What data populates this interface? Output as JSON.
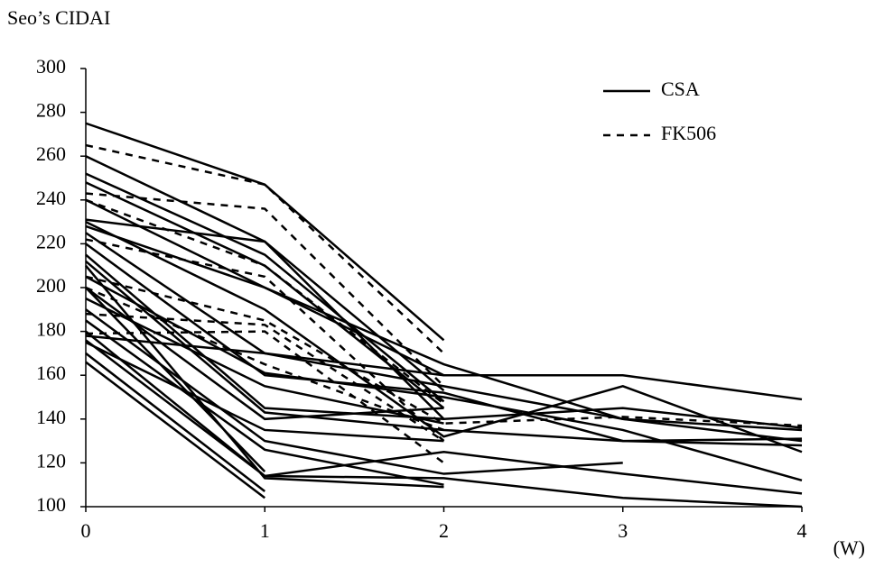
{
  "chart_data": {
    "type": "line",
    "y_label": "Seo’s CIDAI",
    "x_label": "(W)",
    "x": [
      0,
      1,
      2,
      3,
      4
    ],
    "xlim": [
      0,
      4
    ],
    "xticks": [
      0,
      1,
      2,
      3,
      4
    ],
    "ylim": [
      100,
      300
    ],
    "yticks": [
      100,
      120,
      140,
      160,
      180,
      200,
      220,
      240,
      260,
      280,
      300
    ],
    "grid": false,
    "legend_position": "upper-right",
    "color": "#000000",
    "legend": [
      {
        "name": "CSA",
        "dash": "solid"
      },
      {
        "name": "FK506",
        "dash": "dashed"
      }
    ],
    "series": [
      {
        "dash": "solid",
        "values": [
          275,
          247,
          176,
          null,
          null
        ]
      },
      {
        "dash": "solid",
        "values": [
          260,
          221,
          153,
          null,
          null
        ]
      },
      {
        "dash": "solid",
        "values": [
          252,
          215,
          148,
          null,
          null
        ]
      },
      {
        "dash": "solid",
        "values": [
          248,
          210,
          145,
          null,
          null
        ]
      },
      {
        "dash": "solid",
        "values": [
          240,
          200,
          165,
          140,
          130
        ]
      },
      {
        "dash": "solid",
        "values": [
          231,
          221,
          140,
          null,
          null
        ]
      },
      {
        "dash": "solid",
        "values": [
          230,
          190,
          132,
          155,
          125
        ]
      },
      {
        "dash": "solid",
        "values": [
          228,
          200,
          160,
          160,
          149
        ]
      },
      {
        "dash": "solid",
        "values": [
          225,
          170,
          155,
          140,
          135
        ]
      },
      {
        "dash": "solid",
        "values": [
          220,
          160,
          152,
          130,
          131
        ]
      },
      {
        "dash": "solid",
        "values": [
          215,
          145,
          140,
          145,
          136
        ]
      },
      {
        "dash": "solid",
        "values": [
          212,
          143,
          135,
          130,
          128
        ]
      },
      {
        "dash": "solid",
        "values": [
          205,
          161,
          150,
          135,
          112
        ]
      },
      {
        "dash": "solid",
        "values": [
          200,
          140,
          145,
          null,
          null
        ]
      },
      {
        "dash": "solid",
        "values": [
          195,
          155,
          138,
          null,
          null
        ]
      },
      {
        "dash": "solid",
        "values": [
          190,
          130,
          115,
          120,
          null
        ]
      },
      {
        "dash": "solid",
        "values": [
          185,
          126,
          110,
          null,
          null
        ]
      },
      {
        "dash": "solid",
        "values": [
          180,
          114,
          113,
          104,
          100
        ]
      },
      {
        "dash": "solid",
        "values": [
          176,
          114,
          125,
          115,
          106
        ]
      },
      {
        "dash": "solid",
        "values": [
          175,
          135,
          130,
          null,
          null
        ]
      },
      {
        "dash": "solid",
        "values": [
          170,
          107,
          null,
          null,
          null
        ]
      },
      {
        "dash": "solid",
        "values": [
          166,
          104,
          null,
          null,
          null
        ]
      },
      {
        "dash": "solid",
        "values": [
          200,
          116,
          null,
          null,
          null
        ]
      },
      {
        "dash": "solid",
        "values": [
          210,
          113,
          109,
          null,
          null
        ]
      },
      {
        "dash": "solid",
        "values": [
          178,
          170,
          160,
          null,
          null
        ]
      },
      {
        "dash": "dashed",
        "values": [
          265,
          247,
          170,
          null,
          null
        ]
      },
      {
        "dash": "dashed",
        "values": [
          243,
          236,
          155,
          null,
          null
        ]
      },
      {
        "dash": "dashed",
        "values": [
          240,
          210,
          147,
          null,
          null
        ]
      },
      {
        "dash": "dashed",
        "values": [
          222,
          205,
          130,
          null,
          null
        ]
      },
      {
        "dash": "dashed",
        "values": [
          205,
          185,
          138,
          141,
          137
        ]
      },
      {
        "dash": "dashed",
        "values": [
          188,
          183,
          130,
          null,
          null
        ]
      },
      {
        "dash": "dashed",
        "values": [
          179,
          180,
          120,
          null,
          null
        ]
      },
      {
        "dash": "dashed",
        "values": [
          200,
          165,
          135,
          null,
          null
        ]
      }
    ]
  }
}
